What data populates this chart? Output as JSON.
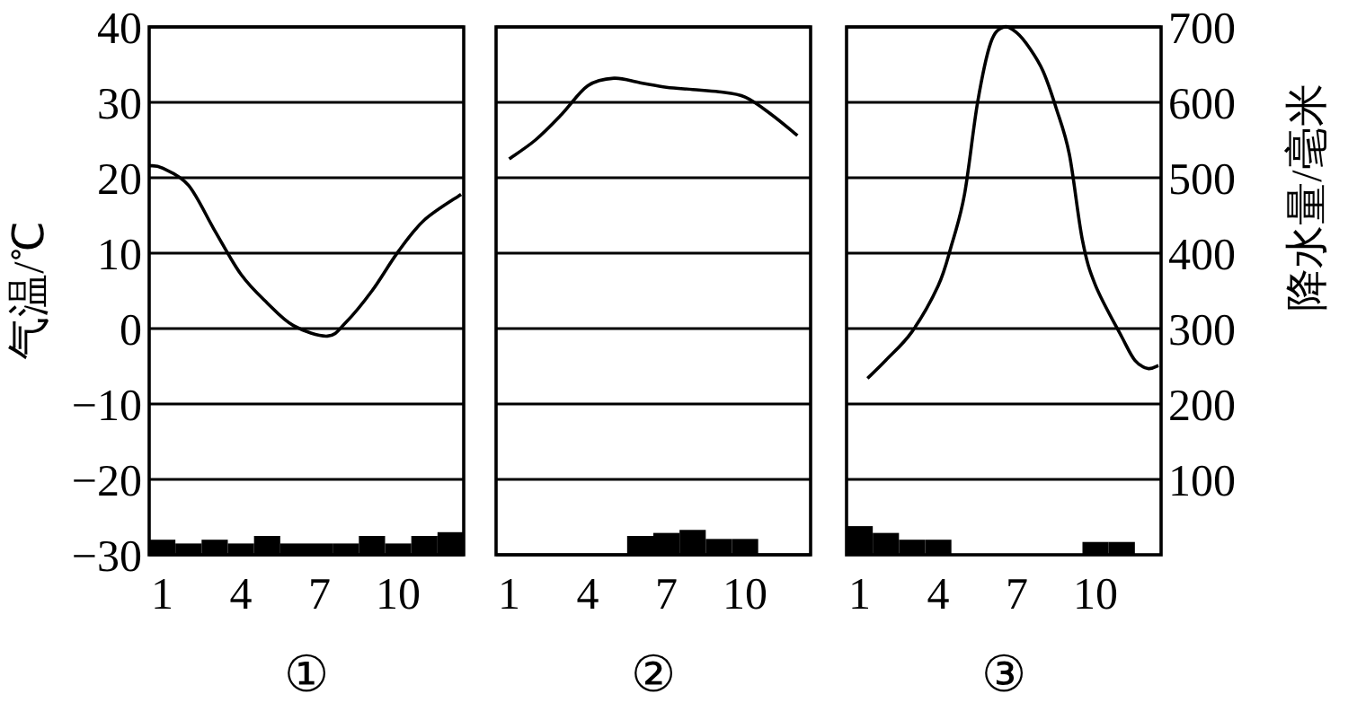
{
  "chart_data": [
    {
      "type": "line",
      "title": "①",
      "ylabel": "气温/℃",
      "xlim": [
        0.5,
        12.5
      ],
      "xticks": [
        1,
        4,
        7,
        10
      ],
      "ylim": [
        -30,
        40
      ],
      "yticks": [
        -30,
        -20,
        -10,
        0,
        10,
        20,
        30,
        40
      ],
      "y2lim": [
        0,
        700
      ],
      "grid": "y",
      "tick_labels": [
        "x",
        "y"
      ],
      "series": [
        {
          "color": "#000000",
          "x": [
            0.5,
            1,
            2,
            3,
            4,
            5,
            6,
            7.3,
            8,
            9,
            10,
            11,
            12.4
          ],
          "values": [
            21.6,
            21.3,
            19,
            13,
            7.2,
            3.4,
            0.4,
            -1,
            0.8,
            5,
            10.2,
            14.4,
            17.8
          ]
        },
        {
          "type": "bar",
          "axis": "y2",
          "color": "#000000",
          "x": [
            1,
            2,
            3,
            4,
            5,
            6,
            7,
            8,
            9,
            10,
            11,
            12
          ],
          "values": [
            20,
            15,
            20,
            15,
            25,
            15,
            15,
            15,
            25,
            15,
            25,
            30
          ]
        }
      ]
    },
    {
      "type": "line",
      "title": "②",
      "xlim": [
        0.5,
        12.5
      ],
      "xticks": [
        1,
        4,
        7,
        10
      ],
      "ylim": [
        -30,
        40
      ],
      "yticks": [
        -30,
        -20,
        -10,
        0,
        10,
        20,
        30,
        40
      ],
      "y2lim": [
        0,
        700
      ],
      "grid": "y",
      "tick_labels": "x",
      "series": [
        {
          "color": "#000000",
          "x": [
            1,
            2,
            3,
            4,
            5,
            6,
            7,
            8,
            9,
            10,
            11,
            12
          ],
          "values": [
            22.5,
            25,
            28.4,
            32.2,
            33.2,
            32.6,
            32,
            31.7,
            31.4,
            30.7,
            28.4,
            25.6
          ]
        },
        {
          "type": "bar",
          "axis": "y2",
          "color": "#000000",
          "x": [
            1,
            2,
            3,
            4,
            5,
            6,
            7,
            8,
            9,
            10,
            11,
            12
          ],
          "values": [
            0,
            0,
            0,
            0,
            0,
            25,
            29,
            33,
            21,
            21,
            0,
            0
          ]
        }
      ]
    },
    {
      "type": "line",
      "title": "③",
      "y2label": "降水量/毫米",
      "xlim": [
        0.5,
        12.5
      ],
      "xticks": [
        1,
        4,
        7,
        10
      ],
      "ylim": [
        -30,
        40
      ],
      "y2lim": [
        0,
        700
      ],
      "y2ticks": [
        100,
        200,
        300,
        400,
        500,
        600,
        700
      ],
      "grid": "y",
      "tick_labels": [
        "x",
        "y2"
      ],
      "series": [
        {
          "color": "#000000",
          "x": [
            1.3,
            2,
            3,
            4,
            4.5,
            5,
            5.5,
            6,
            6.5,
            7,
            7.5,
            8,
            8.5,
            9,
            9.5,
            10,
            11,
            11.5,
            12,
            12.4
          ],
          "values": [
            -6.6,
            -4.2,
            -0.4,
            5.7,
            11,
            17.8,
            30,
            37.9,
            40,
            39.2,
            37.1,
            34.1,
            29.2,
            23.1,
            11.7,
            5.7,
            -1.1,
            -4.2,
            -5.3,
            -4.9
          ]
        },
        {
          "type": "bar",
          "axis": "y2",
          "color": "#000000",
          "x": [
            1,
            2,
            3,
            4,
            5,
            6,
            7,
            8,
            9,
            10,
            11,
            12
          ],
          "values": [
            38,
            29,
            20,
            20,
            0,
            0,
            0,
            0,
            0,
            17,
            17,
            0
          ]
        }
      ]
    }
  ]
}
